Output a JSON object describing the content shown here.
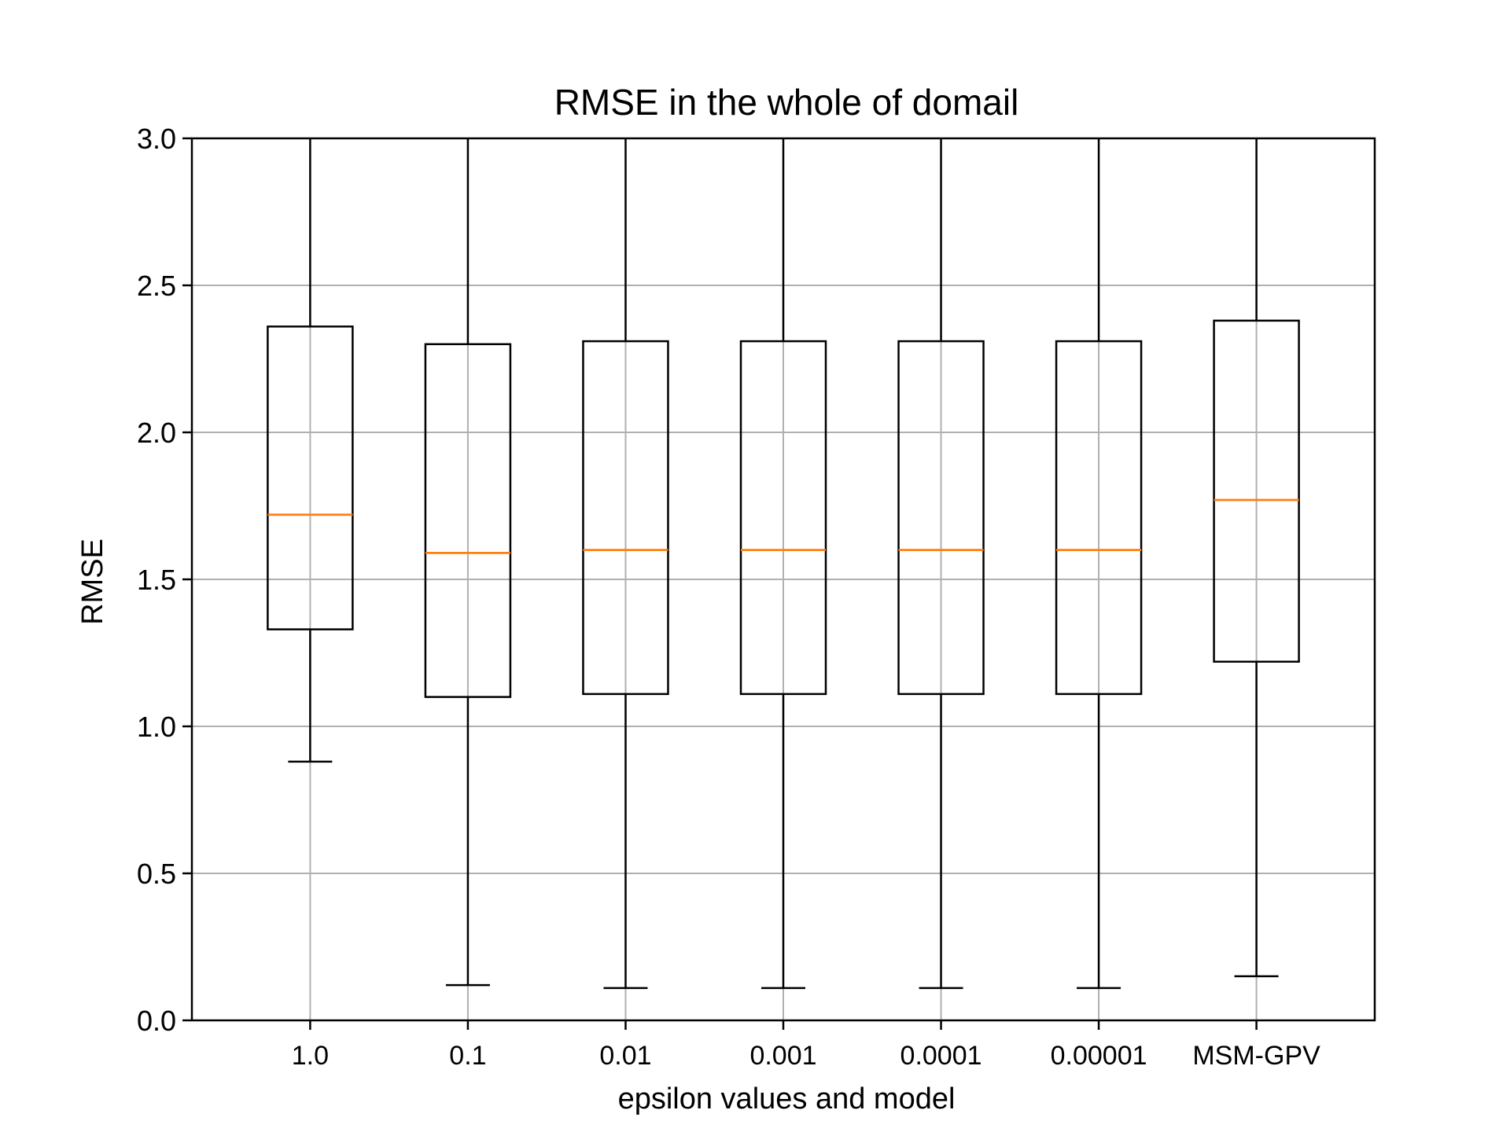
{
  "chart_data": {
    "type": "box",
    "title": "RMSE in the whole of domail",
    "xlabel": "epsilon values and model",
    "ylabel": "RMSE",
    "ylim": [
      0.0,
      3.0
    ],
    "yticks": [
      "0.0",
      "0.5",
      "1.0",
      "1.5",
      "2.0",
      "2.5",
      "3.0"
    ],
    "grid": true,
    "colors": {
      "box": "#000000",
      "median": "#ff7f0e",
      "grid": "#b0b0b0"
    },
    "categories": [
      "1.0",
      "0.1",
      "0.01",
      "0.001",
      "0.0001",
      "0.00001",
      "MSM-GPV"
    ],
    "boxes": [
      {
        "whisker_low": 0.88,
        "q1": 1.33,
        "median": 1.72,
        "q3": 2.36,
        "whisker_high": 3.0
      },
      {
        "whisker_low": 0.12,
        "q1": 1.1,
        "median": 1.59,
        "q3": 2.3,
        "whisker_high": 3.0
      },
      {
        "whisker_low": 0.11,
        "q1": 1.11,
        "median": 1.6,
        "q3": 2.31,
        "whisker_high": 3.0
      },
      {
        "whisker_low": 0.11,
        "q1": 1.11,
        "median": 1.6,
        "q3": 2.31,
        "whisker_high": 3.0
      },
      {
        "whisker_low": 0.11,
        "q1": 1.11,
        "median": 1.6,
        "q3": 2.31,
        "whisker_high": 3.0
      },
      {
        "whisker_low": 0.11,
        "q1": 1.11,
        "median": 1.6,
        "q3": 2.31,
        "whisker_high": 3.0
      },
      {
        "whisker_low": 0.15,
        "q1": 1.22,
        "median": 1.77,
        "q3": 2.38,
        "whisker_high": 3.0
      }
    ]
  }
}
